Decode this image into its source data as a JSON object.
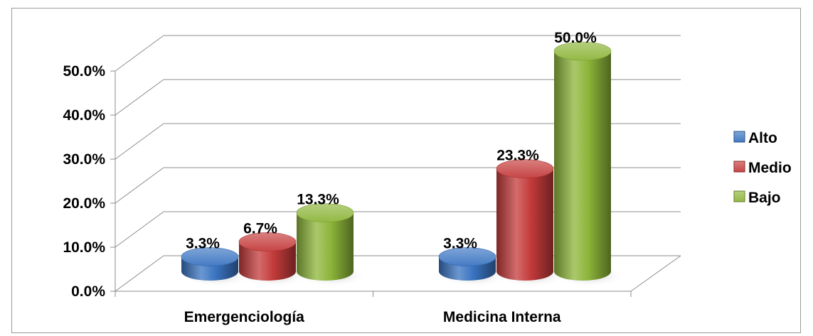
{
  "chart_data": {
    "type": "bar",
    "categories": [
      "Emergenciología",
      "Medicina Interna"
    ],
    "series": [
      {
        "name": "Alto",
        "color": "#3a74c1",
        "values": [
          3.3,
          3.3
        ]
      },
      {
        "name": "Medio",
        "color": "#c43b3b",
        "values": [
          6.7,
          23.3
        ]
      },
      {
        "name": "Bajo",
        "color": "#8db53a",
        "values": [
          13.3,
          50.0
        ]
      }
    ],
    "data_labels": [
      [
        "3.3%",
        "6.7%",
        "13.3%"
      ],
      [
        "3.3%",
        "23.3%",
        "50.0%"
      ]
    ],
    "y_ticks": [
      "0.0%",
      "10.0%",
      "20.0%",
      "30.0%",
      "40.0%",
      "50.0%"
    ],
    "ylim": [
      0,
      50
    ],
    "unit": "%",
    "grid": true,
    "legend_position": "right",
    "style": "3d-cylinder"
  }
}
